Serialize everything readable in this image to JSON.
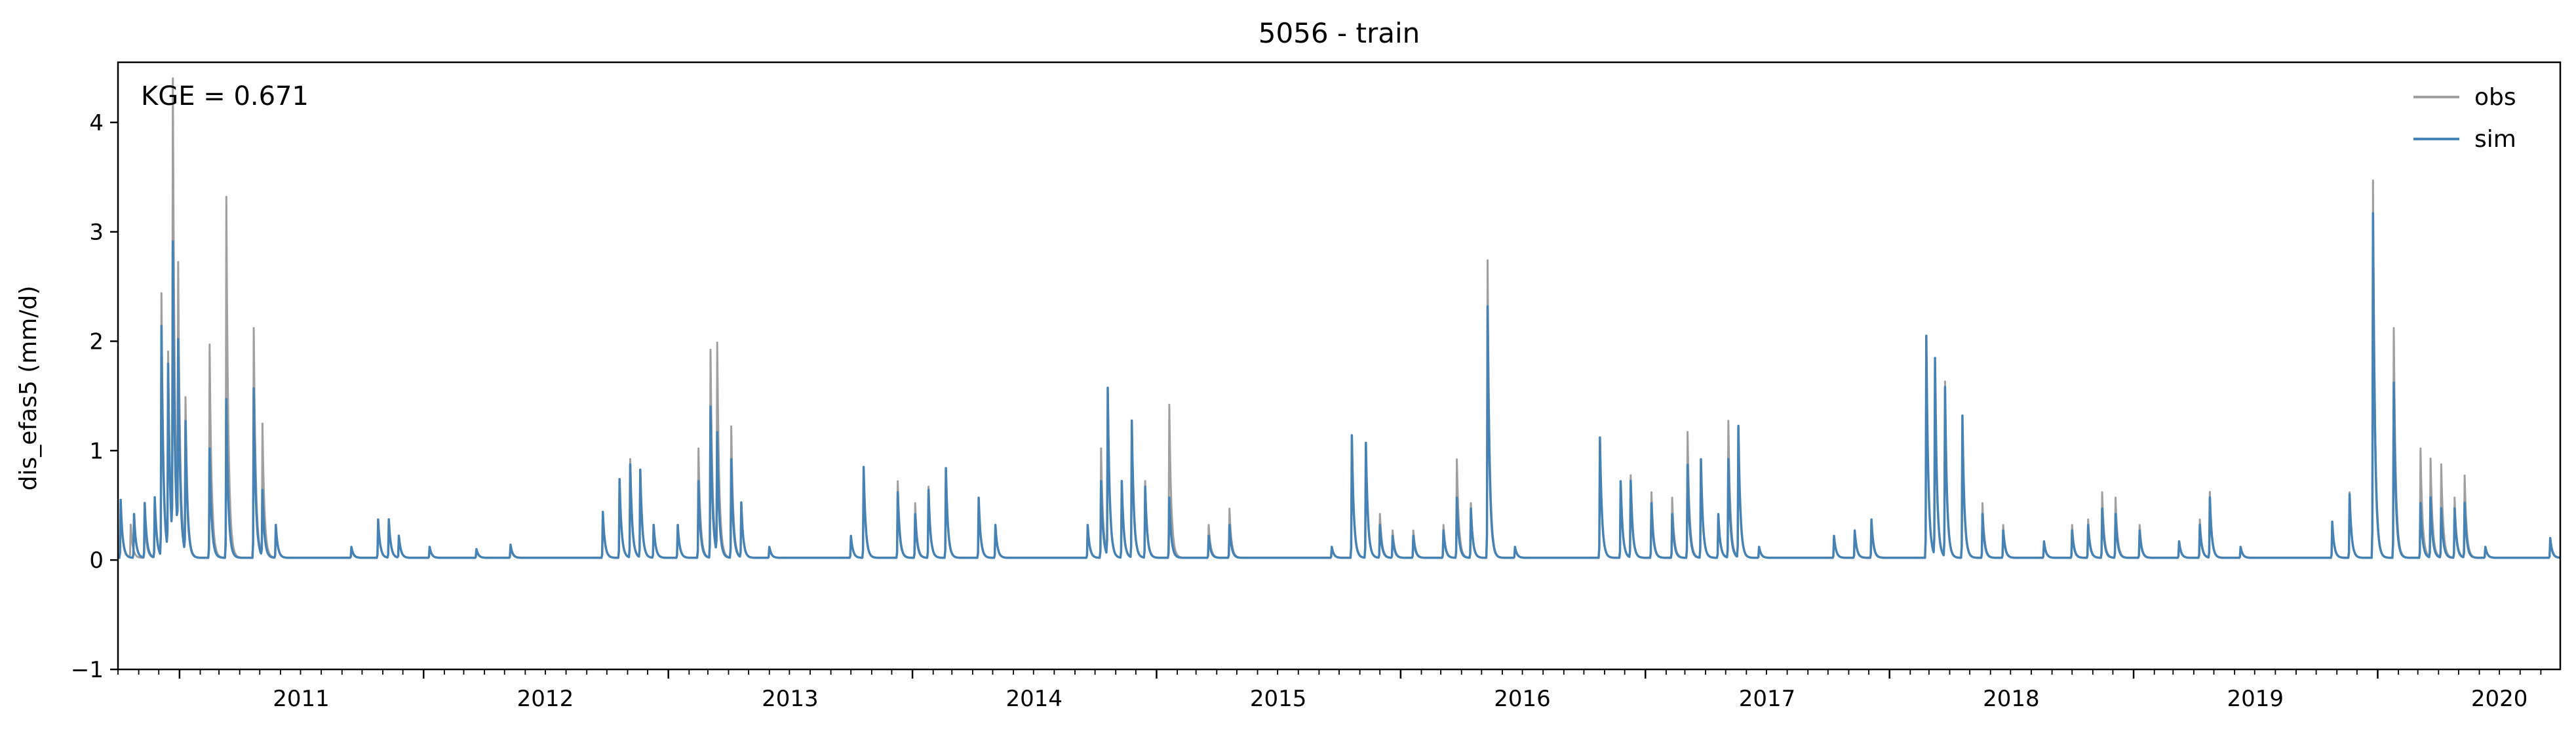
{
  "chart_data": {
    "type": "line",
    "title": "5056 - train",
    "xlabel": "",
    "ylabel": "dis_efas5 (mm/d)",
    "annotation": "KGE = 0.671",
    "xlim": [
      "2010-10-01",
      "2020-09-30"
    ],
    "ylim": [
      -1,
      4.55
    ],
    "yticks": [
      -1,
      0,
      1,
      2,
      3,
      4
    ],
    "xticks": [
      {
        "label": "2011",
        "date": "2011-01-01"
      },
      {
        "label": "2012",
        "date": "2012-01-01"
      },
      {
        "label": "2013",
        "date": "2013-01-01"
      },
      {
        "label": "2014",
        "date": "2014-01-01"
      },
      {
        "label": "2015",
        "date": "2015-01-01"
      },
      {
        "label": "2016",
        "date": "2016-01-01"
      },
      {
        "label": "2017",
        "date": "2017-01-01"
      },
      {
        "label": "2018",
        "date": "2018-01-01"
      },
      {
        "label": "2019",
        "date": "2019-01-01"
      },
      {
        "label": "2020",
        "date": "2020-01-01"
      }
    ],
    "legend": {
      "position": "top-right"
    },
    "grid": false,
    "baseline": 0.02,
    "series": [
      {
        "name": "obs",
        "color": "#a0a0a0",
        "peaks": [
          [
            "2010-10-05",
            0.5
          ],
          [
            "2010-10-20",
            0.3
          ],
          [
            "2010-11-10",
            0.35
          ],
          [
            "2010-11-25",
            0.55
          ],
          [
            "2010-12-05",
            2.4
          ],
          [
            "2010-12-15",
            1.8
          ],
          [
            "2010-12-22",
            4.2
          ],
          [
            "2010-12-30",
            2.4
          ],
          [
            "2011-01-10",
            1.4
          ],
          [
            "2011-02-15",
            1.95
          ],
          [
            "2011-03-12",
            3.3
          ],
          [
            "2011-04-22",
            2.1
          ],
          [
            "2011-05-05",
            1.2
          ],
          [
            "2011-05-25",
            0.3
          ],
          [
            "2011-09-15",
            0.08
          ],
          [
            "2011-10-25",
            0.35
          ],
          [
            "2011-11-10",
            0.35
          ],
          [
            "2011-11-25",
            0.2
          ],
          [
            "2012-01-10",
            0.1
          ],
          [
            "2012-03-20",
            0.08
          ],
          [
            "2012-05-10",
            0.1
          ],
          [
            "2012-09-25",
            0.4
          ],
          [
            "2012-10-20",
            0.7
          ],
          [
            "2012-11-05",
            0.9
          ],
          [
            "2012-11-20",
            0.8
          ],
          [
            "2012-12-10",
            0.3
          ],
          [
            "2013-01-15",
            0.3
          ],
          [
            "2013-02-15",
            1.0
          ],
          [
            "2013-03-05",
            1.9
          ],
          [
            "2013-03-15",
            1.9
          ],
          [
            "2013-04-05",
            1.2
          ],
          [
            "2013-04-20",
            0.5
          ],
          [
            "2013-06-01",
            0.1
          ],
          [
            "2013-10-01",
            0.2
          ],
          [
            "2013-10-20",
            0.8
          ],
          [
            "2013-12-10",
            0.7
          ],
          [
            "2014-01-05",
            0.5
          ],
          [
            "2014-01-25",
            0.65
          ],
          [
            "2014-02-20",
            0.8
          ],
          [
            "2014-04-10",
            0.5
          ],
          [
            "2014-05-05",
            0.3
          ],
          [
            "2014-09-20",
            0.3
          ],
          [
            "2014-10-10",
            1.0
          ],
          [
            "2014-10-20",
            1.5
          ],
          [
            "2014-11-10",
            0.7
          ],
          [
            "2014-11-25",
            1.2
          ],
          [
            "2014-12-15",
            0.7
          ],
          [
            "2015-01-20",
            1.4
          ],
          [
            "2015-03-20",
            0.3
          ],
          [
            "2015-04-20",
            0.45
          ],
          [
            "2015-09-20",
            0.1
          ],
          [
            "2015-10-20",
            1.1
          ],
          [
            "2015-11-10",
            1.05
          ],
          [
            "2015-12-01",
            0.4
          ],
          [
            "2015-12-20",
            0.25
          ],
          [
            "2016-01-20",
            0.25
          ],
          [
            "2016-03-05",
            0.3
          ],
          [
            "2016-03-25",
            0.9
          ],
          [
            "2016-04-15",
            0.5
          ],
          [
            "2016-05-10",
            2.72
          ],
          [
            "2016-06-20",
            0.1
          ],
          [
            "2016-10-25",
            1.1
          ],
          [
            "2016-11-25",
            0.7
          ],
          [
            "2016-12-10",
            0.75
          ],
          [
            "2017-01-10",
            0.6
          ],
          [
            "2017-02-10",
            0.55
          ],
          [
            "2017-03-05",
            1.15
          ],
          [
            "2017-03-25",
            0.9
          ],
          [
            "2017-04-20",
            0.4
          ],
          [
            "2017-05-05",
            1.25
          ],
          [
            "2017-05-20",
            1.2
          ],
          [
            "2017-06-20",
            0.1
          ],
          [
            "2017-10-10",
            0.2
          ],
          [
            "2017-11-10",
            0.25
          ],
          [
            "2017-12-05",
            0.3
          ],
          [
            "2018-02-25",
            2.0
          ],
          [
            "2018-03-10",
            1.7
          ],
          [
            "2018-03-25",
            1.6
          ],
          [
            "2018-04-20",
            1.2
          ],
          [
            "2018-05-20",
            0.5
          ],
          [
            "2018-06-20",
            0.3
          ],
          [
            "2018-08-20",
            0.15
          ],
          [
            "2018-10-01",
            0.3
          ],
          [
            "2018-10-25",
            0.35
          ],
          [
            "2018-11-15",
            0.6
          ],
          [
            "2018-12-05",
            0.55
          ],
          [
            "2019-01-10",
            0.3
          ],
          [
            "2019-03-10",
            0.15
          ],
          [
            "2019-04-10",
            0.35
          ],
          [
            "2019-04-25",
            0.6
          ],
          [
            "2019-06-10",
            0.1
          ],
          [
            "2019-10-25",
            0.3
          ],
          [
            "2019-11-20",
            0.6
          ],
          [
            "2019-12-25",
            3.45
          ],
          [
            "2020-01-25",
            2.1
          ],
          [
            "2020-03-05",
            1.0
          ],
          [
            "2020-03-20",
            0.9
          ],
          [
            "2020-04-05",
            0.85
          ],
          [
            "2020-04-25",
            0.55
          ],
          [
            "2020-05-10",
            0.75
          ],
          [
            "2020-06-10",
            0.1
          ],
          [
            "2020-09-15",
            0.15
          ]
        ]
      },
      {
        "name": "sim",
        "color": "#4682b4",
        "peaks": [
          [
            "2010-10-05",
            0.53
          ],
          [
            "2010-10-25",
            0.4
          ],
          [
            "2010-11-10",
            0.5
          ],
          [
            "2010-11-25",
            0.55
          ],
          [
            "2010-12-05",
            2.1
          ],
          [
            "2010-12-15",
            1.7
          ],
          [
            "2010-12-22",
            2.72
          ],
          [
            "2010-12-30",
            1.8
          ],
          [
            "2011-01-10",
            1.2
          ],
          [
            "2011-02-15",
            1.0
          ],
          [
            "2011-03-12",
            1.45
          ],
          [
            "2011-04-22",
            1.55
          ],
          [
            "2011-05-05",
            0.6
          ],
          [
            "2011-05-25",
            0.3
          ],
          [
            "2011-09-15",
            0.1
          ],
          [
            "2011-10-25",
            0.35
          ],
          [
            "2011-11-10",
            0.35
          ],
          [
            "2011-11-25",
            0.2
          ],
          [
            "2012-01-10",
            0.1
          ],
          [
            "2012-03-20",
            0.08
          ],
          [
            "2012-05-10",
            0.12
          ],
          [
            "2012-09-25",
            0.42
          ],
          [
            "2012-10-20",
            0.72
          ],
          [
            "2012-11-05",
            0.85
          ],
          [
            "2012-11-20",
            0.8
          ],
          [
            "2012-12-10",
            0.3
          ],
          [
            "2013-01-15",
            0.3
          ],
          [
            "2013-02-15",
            0.7
          ],
          [
            "2013-03-05",
            1.38
          ],
          [
            "2013-03-15",
            1.1
          ],
          [
            "2013-04-05",
            0.9
          ],
          [
            "2013-04-20",
            0.5
          ],
          [
            "2013-06-01",
            0.1
          ],
          [
            "2013-10-01",
            0.2
          ],
          [
            "2013-10-20",
            0.83
          ],
          [
            "2013-12-10",
            0.6
          ],
          [
            "2014-01-05",
            0.4
          ],
          [
            "2014-01-25",
            0.62
          ],
          [
            "2014-02-20",
            0.82
          ],
          [
            "2014-04-10",
            0.55
          ],
          [
            "2014-05-05",
            0.3
          ],
          [
            "2014-09-20",
            0.3
          ],
          [
            "2014-10-10",
            0.7
          ],
          [
            "2014-10-20",
            1.53
          ],
          [
            "2014-11-10",
            0.7
          ],
          [
            "2014-11-25",
            1.25
          ],
          [
            "2014-12-15",
            0.65
          ],
          [
            "2015-01-20",
            0.55
          ],
          [
            "2015-03-20",
            0.2
          ],
          [
            "2015-04-20",
            0.3
          ],
          [
            "2015-09-20",
            0.1
          ],
          [
            "2015-10-20",
            1.12
          ],
          [
            "2015-11-10",
            1.05
          ],
          [
            "2015-12-01",
            0.3
          ],
          [
            "2015-12-20",
            0.2
          ],
          [
            "2016-01-20",
            0.2
          ],
          [
            "2016-03-05",
            0.25
          ],
          [
            "2016-03-25",
            0.55
          ],
          [
            "2016-04-15",
            0.45
          ],
          [
            "2016-05-10",
            2.3
          ],
          [
            "2016-06-20",
            0.1
          ],
          [
            "2016-10-25",
            1.1
          ],
          [
            "2016-11-25",
            0.7
          ],
          [
            "2016-12-10",
            0.7
          ],
          [
            "2017-01-10",
            0.5
          ],
          [
            "2017-02-10",
            0.4
          ],
          [
            "2017-03-05",
            0.85
          ],
          [
            "2017-03-25",
            0.9
          ],
          [
            "2017-04-20",
            0.4
          ],
          [
            "2017-05-05",
            0.9
          ],
          [
            "2017-05-20",
            1.2
          ],
          [
            "2017-06-20",
            0.1
          ],
          [
            "2017-10-10",
            0.2
          ],
          [
            "2017-11-10",
            0.25
          ],
          [
            "2017-12-05",
            0.35
          ],
          [
            "2018-02-25",
            2.03
          ],
          [
            "2018-03-10",
            1.8
          ],
          [
            "2018-03-25",
            1.55
          ],
          [
            "2018-04-20",
            1.3
          ],
          [
            "2018-05-20",
            0.4
          ],
          [
            "2018-06-20",
            0.25
          ],
          [
            "2018-08-20",
            0.15
          ],
          [
            "2018-10-01",
            0.25
          ],
          [
            "2018-10-25",
            0.3
          ],
          [
            "2018-11-15",
            0.45
          ],
          [
            "2018-12-05",
            0.4
          ],
          [
            "2019-01-10",
            0.25
          ],
          [
            "2019-03-10",
            0.15
          ],
          [
            "2019-04-10",
            0.3
          ],
          [
            "2019-04-25",
            0.55
          ],
          [
            "2019-06-10",
            0.1
          ],
          [
            "2019-10-25",
            0.33
          ],
          [
            "2019-11-20",
            0.58
          ],
          [
            "2019-12-25",
            3.15
          ],
          [
            "2020-01-25",
            1.6
          ],
          [
            "2020-03-05",
            0.5
          ],
          [
            "2020-03-20",
            0.55
          ],
          [
            "2020-04-05",
            0.45
          ],
          [
            "2020-04-25",
            0.45
          ],
          [
            "2020-05-10",
            0.5
          ],
          [
            "2020-06-10",
            0.1
          ],
          [
            "2020-09-15",
            0.18
          ]
        ]
      }
    ]
  }
}
